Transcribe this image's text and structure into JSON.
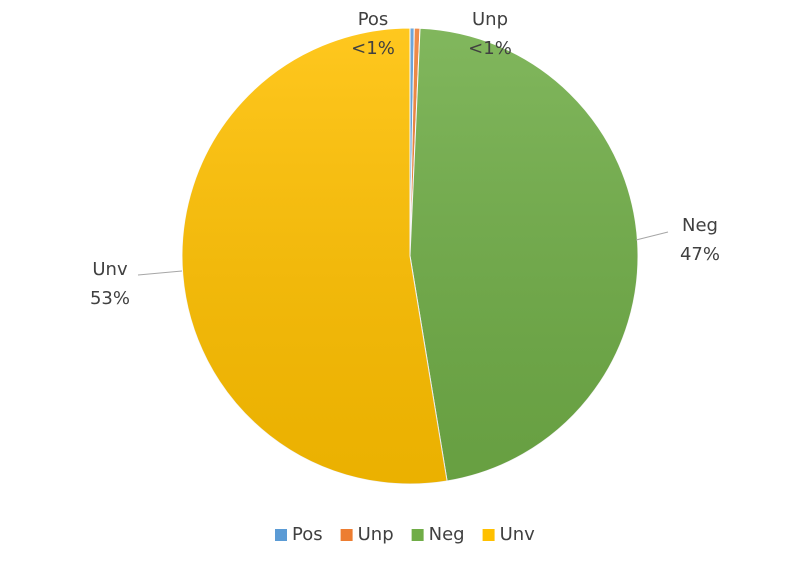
{
  "chart_data": {
    "type": "pie",
    "categories": [
      "Pos",
      "Unp",
      "Neg",
      "Unv"
    ],
    "values": [
      0.3,
      0.4,
      46.7,
      52.6
    ],
    "value_labels": [
      "<1%",
      "<1%",
      "47%",
      "53%"
    ],
    "colors": [
      "#5b9bd5",
      "#ed7d31",
      "#70ad47",
      "#ffc000"
    ],
    "legend": "bottom"
  }
}
